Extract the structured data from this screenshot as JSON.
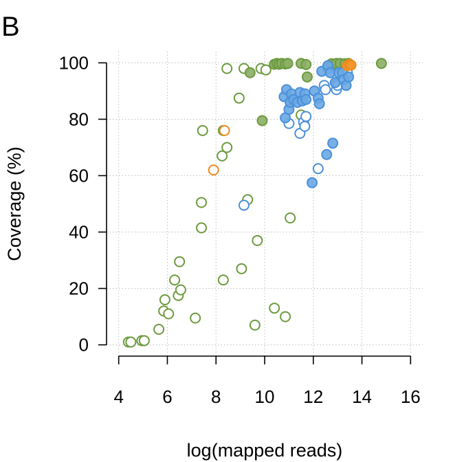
{
  "panel_label": "B",
  "colors": {
    "green": "#6b9a3e",
    "green_fill": "#8cae65",
    "blue": "#4a90d9",
    "blue_fill": "#6aa7e3",
    "orange": "#ef8a1d",
    "orange_fill": "#f2962f"
  },
  "chart_data": {
    "type": "scatter",
    "xlabel": "log(mapped reads)",
    "ylabel": "Coverage (%)",
    "xlim": [
      3.5,
      16.5
    ],
    "ylim": [
      -4,
      104
    ],
    "xticks": [
      4,
      6,
      8,
      10,
      12,
      14,
      16
    ],
    "yticks": [
      0,
      20,
      40,
      60,
      80,
      100
    ],
    "grid": true,
    "series": [
      {
        "color": "green",
        "marker": "open-circle",
        "points": [
          [
            4.4,
            1
          ],
          [
            4.5,
            1
          ],
          [
            4.95,
            1.5
          ],
          [
            5.05,
            1.5
          ],
          [
            5.65,
            5.5
          ],
          [
            5.85,
            12
          ],
          [
            5.9,
            16
          ],
          [
            6.05,
            11
          ],
          [
            6.3,
            23
          ],
          [
            6.45,
            17.5
          ],
          [
            6.55,
            19.5
          ],
          [
            6.5,
            29.5
          ],
          [
            7.15,
            9.5
          ],
          [
            7.4,
            41.5
          ],
          [
            7.4,
            50.5
          ],
          [
            7.45,
            76
          ],
          [
            8.25,
            67
          ],
          [
            8.3,
            23
          ],
          [
            8.3,
            76
          ],
          [
            8.45,
            70
          ],
          [
            8.45,
            98
          ],
          [
            8.95,
            87.5
          ],
          [
            9.05,
            27
          ],
          [
            9.15,
            98
          ],
          [
            9.3,
            51.5
          ],
          [
            9.6,
            7
          ],
          [
            9.7,
            37
          ],
          [
            9.85,
            98
          ],
          [
            10.05,
            97.5
          ],
          [
            10.4,
            13
          ],
          [
            10.85,
            10
          ],
          [
            11.05,
            45
          ],
          [
            11.5,
            81.5
          ],
          [
            11.1,
            87
          ]
        ]
      },
      {
        "color": "green",
        "marker": "filled-circle",
        "points": [
          [
            9.4,
            96.5
          ],
          [
            9.9,
            79.5
          ],
          [
            10.4,
            99.5
          ],
          [
            10.5,
            99.8
          ],
          [
            10.6,
            99.5
          ],
          [
            10.7,
            99.8
          ],
          [
            10.85,
            99.6
          ],
          [
            10.95,
            99.8
          ],
          [
            11.5,
            99.8
          ],
          [
            11.7,
            99.4
          ],
          [
            11.75,
            95
          ],
          [
            12.75,
            99.7
          ],
          [
            12.95,
            99.8
          ],
          [
            13.1,
            99.8
          ],
          [
            13.3,
            99.7
          ],
          [
            13.45,
            99.8
          ],
          [
            14.8,
            99.8
          ]
        ]
      },
      {
        "color": "blue",
        "marker": "open-circle",
        "points": [
          [
            9.15,
            49.5
          ],
          [
            11.0,
            78.5
          ],
          [
            11.45,
            75
          ],
          [
            11.6,
            79
          ],
          [
            11.65,
            77.5
          ],
          [
            11.7,
            81
          ],
          [
            12.05,
            90
          ],
          [
            12.2,
            62.5
          ],
          [
            12.45,
            92
          ],
          [
            12.5,
            90.5
          ],
          [
            12.6,
            98
          ],
          [
            12.75,
            99
          ],
          [
            12.95,
            92.5
          ],
          [
            12.95,
            90.5
          ],
          [
            13.0,
            92
          ],
          [
            13.1,
            98.5
          ],
          [
            13.4,
            96.5
          ]
        ]
      },
      {
        "color": "blue",
        "marker": "filled-circle",
        "points": [
          [
            10.8,
            88
          ],
          [
            10.85,
            80.5
          ],
          [
            10.9,
            90.5
          ],
          [
            11.0,
            83.5
          ],
          [
            11.05,
            86
          ],
          [
            11.1,
            89
          ],
          [
            11.2,
            87
          ],
          [
            11.35,
            86
          ],
          [
            11.45,
            89.5
          ],
          [
            11.55,
            86.5
          ],
          [
            11.65,
            89
          ],
          [
            11.7,
            87
          ],
          [
            11.95,
            57.5
          ],
          [
            12.05,
            90
          ],
          [
            12.2,
            87.5
          ],
          [
            12.25,
            85.5
          ],
          [
            12.35,
            97
          ],
          [
            12.55,
            67.5
          ],
          [
            12.6,
            99
          ],
          [
            12.7,
            96.5
          ],
          [
            12.8,
            71.5
          ],
          [
            12.9,
            93
          ],
          [
            13.05,
            96.5
          ],
          [
            13.2,
            96.5
          ],
          [
            13.25,
            94
          ],
          [
            13.35,
            92
          ],
          [
            13.45,
            95
          ]
        ]
      },
      {
        "color": "orange",
        "marker": "open-circle",
        "points": [
          [
            7.9,
            62
          ],
          [
            8.35,
            76
          ]
        ]
      },
      {
        "color": "orange",
        "marker": "filled-circle",
        "points": [
          [
            13.4,
            99
          ],
          [
            13.5,
            99.5
          ],
          [
            13.55,
            99.2
          ]
        ]
      }
    ]
  }
}
